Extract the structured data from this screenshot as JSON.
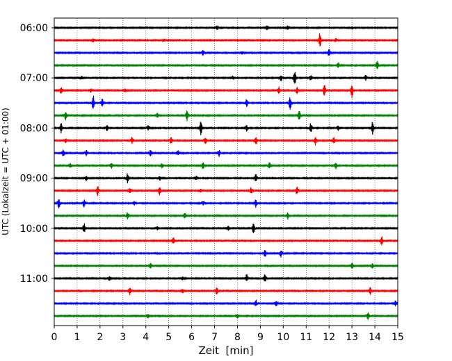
{
  "chart_data": {
    "type": "line",
    "title": "",
    "xlabel": "Zeit  [min]",
    "ylabel": "UTC (Lokalzeit = UTC + 01:00)",
    "xlim": [
      0,
      15
    ],
    "x_ticks": [
      0,
      1,
      2,
      3,
      4,
      5,
      6,
      7,
      8,
      9,
      10,
      11,
      12,
      13,
      14,
      15
    ],
    "y_tick_labels": [
      "06:00",
      "07:00",
      "08:00",
      "09:00",
      "10:00",
      "11:00"
    ],
    "grid": "vertical dotted lines at each minute",
    "row_interval_min": 15,
    "colors": {
      "black": "#000000",
      "red": "#ff0000",
      "blue": "#0000ff",
      "green": "#008000"
    },
    "color_cycle": [
      "black",
      "red",
      "blue",
      "green"
    ],
    "traces": [
      {
        "start": "06:00",
        "color": "black",
        "spikes": [
          {
            "t": 7.1,
            "a": 0.35
          },
          {
            "t": 9.3,
            "a": 0.45
          },
          {
            "t": 10.2,
            "a": 0.3
          },
          {
            "t": 13.0,
            "a": 0.25
          }
        ]
      },
      {
        "start": "06:15",
        "color": "red",
        "spikes": [
          {
            "t": 1.7,
            "a": 0.3
          },
          {
            "t": 4.8,
            "a": 0.2
          },
          {
            "t": 11.6,
            "a": 1.2
          },
          {
            "t": 12.3,
            "a": 0.3
          }
        ]
      },
      {
        "start": "06:30",
        "color": "blue",
        "spikes": [
          {
            "t": 6.5,
            "a": 0.45
          },
          {
            "t": 8.2,
            "a": 0.25
          },
          {
            "t": 12.0,
            "a": 0.6
          }
        ]
      },
      {
        "start": "06:45",
        "color": "green",
        "spikes": [
          {
            "t": 12.4,
            "a": 0.45
          },
          {
            "t": 14.1,
            "a": 0.9
          }
        ]
      },
      {
        "start": "07:00",
        "color": "black",
        "spikes": [
          {
            "t": 1.2,
            "a": 0.25
          },
          {
            "t": 7.8,
            "a": 0.3
          },
          {
            "t": 9.9,
            "a": 0.5
          },
          {
            "t": 10.5,
            "a": 1.3
          },
          {
            "t": 11.2,
            "a": 0.5
          },
          {
            "t": 13.6,
            "a": 0.45
          }
        ]
      },
      {
        "start": "07:15",
        "color": "red",
        "spikes": [
          {
            "t": 0.3,
            "a": 0.6
          },
          {
            "t": 1.6,
            "a": 0.3
          },
          {
            "t": 3.1,
            "a": 0.3
          },
          {
            "t": 9.8,
            "a": 0.6
          },
          {
            "t": 10.6,
            "a": 0.55
          },
          {
            "t": 11.8,
            "a": 1.0
          },
          {
            "t": 13.0,
            "a": 1.2
          }
        ]
      },
      {
        "start": "07:30",
        "color": "blue",
        "spikes": [
          {
            "t": 1.7,
            "a": 1.2
          },
          {
            "t": 2.1,
            "a": 0.6
          },
          {
            "t": 8.4,
            "a": 0.6
          },
          {
            "t": 10.3,
            "a": 1.0
          }
        ]
      },
      {
        "start": "07:45",
        "color": "green",
        "spikes": [
          {
            "t": 0.5,
            "a": 0.7
          },
          {
            "t": 4.5,
            "a": 0.45
          },
          {
            "t": 5.8,
            "a": 0.9
          },
          {
            "t": 10.7,
            "a": 0.9
          }
        ]
      },
      {
        "start": "08:00",
        "color": "black",
        "spikes": [
          {
            "t": 0.3,
            "a": 0.8
          },
          {
            "t": 2.3,
            "a": 0.5
          },
          {
            "t": 4.1,
            "a": 0.4
          },
          {
            "t": 6.4,
            "a": 1.2
          },
          {
            "t": 8.4,
            "a": 0.5
          },
          {
            "t": 11.2,
            "a": 0.8
          },
          {
            "t": 12.4,
            "a": 0.4
          },
          {
            "t": 13.9,
            "a": 1.0
          }
        ]
      },
      {
        "start": "08:15",
        "color": "red",
        "spikes": [
          {
            "t": 0.5,
            "a": 0.35
          },
          {
            "t": 3.4,
            "a": 0.6
          },
          {
            "t": 5.1,
            "a": 0.5
          },
          {
            "t": 6.6,
            "a": 0.6
          },
          {
            "t": 8.8,
            "a": 0.7
          },
          {
            "t": 11.4,
            "a": 0.7
          },
          {
            "t": 12.2,
            "a": 0.5
          }
        ]
      },
      {
        "start": "08:30",
        "color": "blue",
        "spikes": [
          {
            "t": 0.4,
            "a": 0.6
          },
          {
            "t": 1.4,
            "a": 0.45
          },
          {
            "t": 4.2,
            "a": 0.5
          },
          {
            "t": 5.4,
            "a": 0.4
          },
          {
            "t": 7.2,
            "a": 0.55
          }
        ]
      },
      {
        "start": "08:45",
        "color": "green",
        "spikes": [
          {
            "t": 0.7,
            "a": 0.35
          },
          {
            "t": 2.5,
            "a": 0.45
          },
          {
            "t": 4.7,
            "a": 0.35
          },
          {
            "t": 6.5,
            "a": 0.6
          },
          {
            "t": 9.4,
            "a": 0.5
          },
          {
            "t": 12.3,
            "a": 0.6
          }
        ]
      },
      {
        "start": "09:00",
        "color": "black",
        "spikes": [
          {
            "t": 1.4,
            "a": 0.4
          },
          {
            "t": 3.2,
            "a": 0.8
          },
          {
            "t": 4.6,
            "a": 0.4
          },
          {
            "t": 6.2,
            "a": 0.4
          },
          {
            "t": 8.8,
            "a": 0.6
          }
        ]
      },
      {
        "start": "09:15",
        "color": "red",
        "spikes": [
          {
            "t": 1.9,
            "a": 0.8
          },
          {
            "t": 3.3,
            "a": 0.5
          },
          {
            "t": 4.6,
            "a": 0.7
          },
          {
            "t": 6.4,
            "a": 0.35
          },
          {
            "t": 8.6,
            "a": 0.5
          },
          {
            "t": 10.6,
            "a": 0.6
          }
        ]
      },
      {
        "start": "09:30",
        "color": "blue",
        "spikes": [
          {
            "t": 0.2,
            "a": 0.8
          },
          {
            "t": 1.3,
            "a": 0.6
          },
          {
            "t": 3.5,
            "a": 0.35
          },
          {
            "t": 6.5,
            "a": 0.35
          },
          {
            "t": 8.8,
            "a": 0.7
          }
        ]
      },
      {
        "start": "09:45",
        "color": "green",
        "spikes": [
          {
            "t": 3.2,
            "a": 0.6
          },
          {
            "t": 5.7,
            "a": 0.4
          },
          {
            "t": 10.2,
            "a": 0.6
          }
        ]
      },
      {
        "start": "10:00",
        "color": "black",
        "spikes": [
          {
            "t": 1.3,
            "a": 0.8
          },
          {
            "t": 4.5,
            "a": 0.3
          },
          {
            "t": 7.6,
            "a": 0.4
          },
          {
            "t": 8.7,
            "a": 0.8
          }
        ]
      },
      {
        "start": "10:15",
        "color": "red",
        "spikes": [
          {
            "t": 5.2,
            "a": 0.6
          },
          {
            "t": 14.3,
            "a": 0.7
          }
        ]
      },
      {
        "start": "10:30",
        "color": "blue",
        "spikes": [
          {
            "t": 9.2,
            "a": 0.7
          },
          {
            "t": 9.9,
            "a": 0.6
          }
        ]
      },
      {
        "start": "10:45",
        "color": "green",
        "spikes": [
          {
            "t": 4.2,
            "a": 0.5
          },
          {
            "t": 13.0,
            "a": 0.5
          },
          {
            "t": 13.9,
            "a": 0.35
          }
        ]
      },
      {
        "start": "11:00",
        "color": "black",
        "spikes": [
          {
            "t": 2.4,
            "a": 0.35
          },
          {
            "t": 5.6,
            "a": 0.3
          },
          {
            "t": 8.4,
            "a": 0.6
          },
          {
            "t": 9.2,
            "a": 0.6
          }
        ]
      },
      {
        "start": "11:15",
        "color": "red",
        "spikes": [
          {
            "t": 3.3,
            "a": 0.6
          },
          {
            "t": 5.6,
            "a": 0.4
          },
          {
            "t": 7.1,
            "a": 0.7
          },
          {
            "t": 13.8,
            "a": 0.6
          }
        ]
      },
      {
        "start": "11:30",
        "color": "blue",
        "spikes": [
          {
            "t": 8.8,
            "a": 0.6
          },
          {
            "t": 9.7,
            "a": 0.5
          },
          {
            "t": 14.9,
            "a": 0.4
          }
        ]
      },
      {
        "start": "11:45",
        "color": "green",
        "spikes": [
          {
            "t": 4.1,
            "a": 0.35
          },
          {
            "t": 8.0,
            "a": 0.35
          },
          {
            "t": 13.7,
            "a": 0.7
          }
        ]
      }
    ]
  }
}
